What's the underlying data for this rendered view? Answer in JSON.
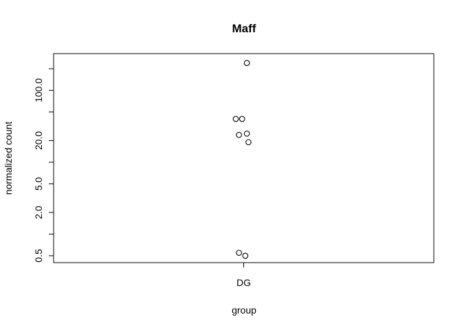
{
  "chart_data": {
    "type": "scatter",
    "title": "Maff",
    "xlabel": "group",
    "ylabel": "normalized count",
    "categories": [
      "DG"
    ],
    "y_scale": "log",
    "ylim": [
      0.5,
      260
    ],
    "y_ticks": [
      {
        "value": 0.5,
        "label": "0.5"
      },
      {
        "value": 1,
        "label": ""
      },
      {
        "value": 2,
        "label": "2.0"
      },
      {
        "value": 5,
        "label": "5.0"
      },
      {
        "value": 10,
        "label": ""
      },
      {
        "value": 20,
        "label": "20.0"
      },
      {
        "value": 50,
        "label": ""
      },
      {
        "value": 100,
        "label": "100.0"
      },
      {
        "value": 200,
        "label": ""
      }
    ],
    "grid": false,
    "series": [
      {
        "category": "DG",
        "points": [
          {
            "jitter": 0.02,
            "y": 240
          },
          {
            "jitter": -0.05,
            "y": 40
          },
          {
            "jitter": -0.01,
            "y": 40
          },
          {
            "jitter": -0.03,
            "y": 24
          },
          {
            "jitter": 0.02,
            "y": 25
          },
          {
            "jitter": 0.03,
            "y": 19
          },
          {
            "jitter": -0.03,
            "y": 0.55
          },
          {
            "jitter": 0.01,
            "y": 0.5
          }
        ]
      }
    ]
  }
}
